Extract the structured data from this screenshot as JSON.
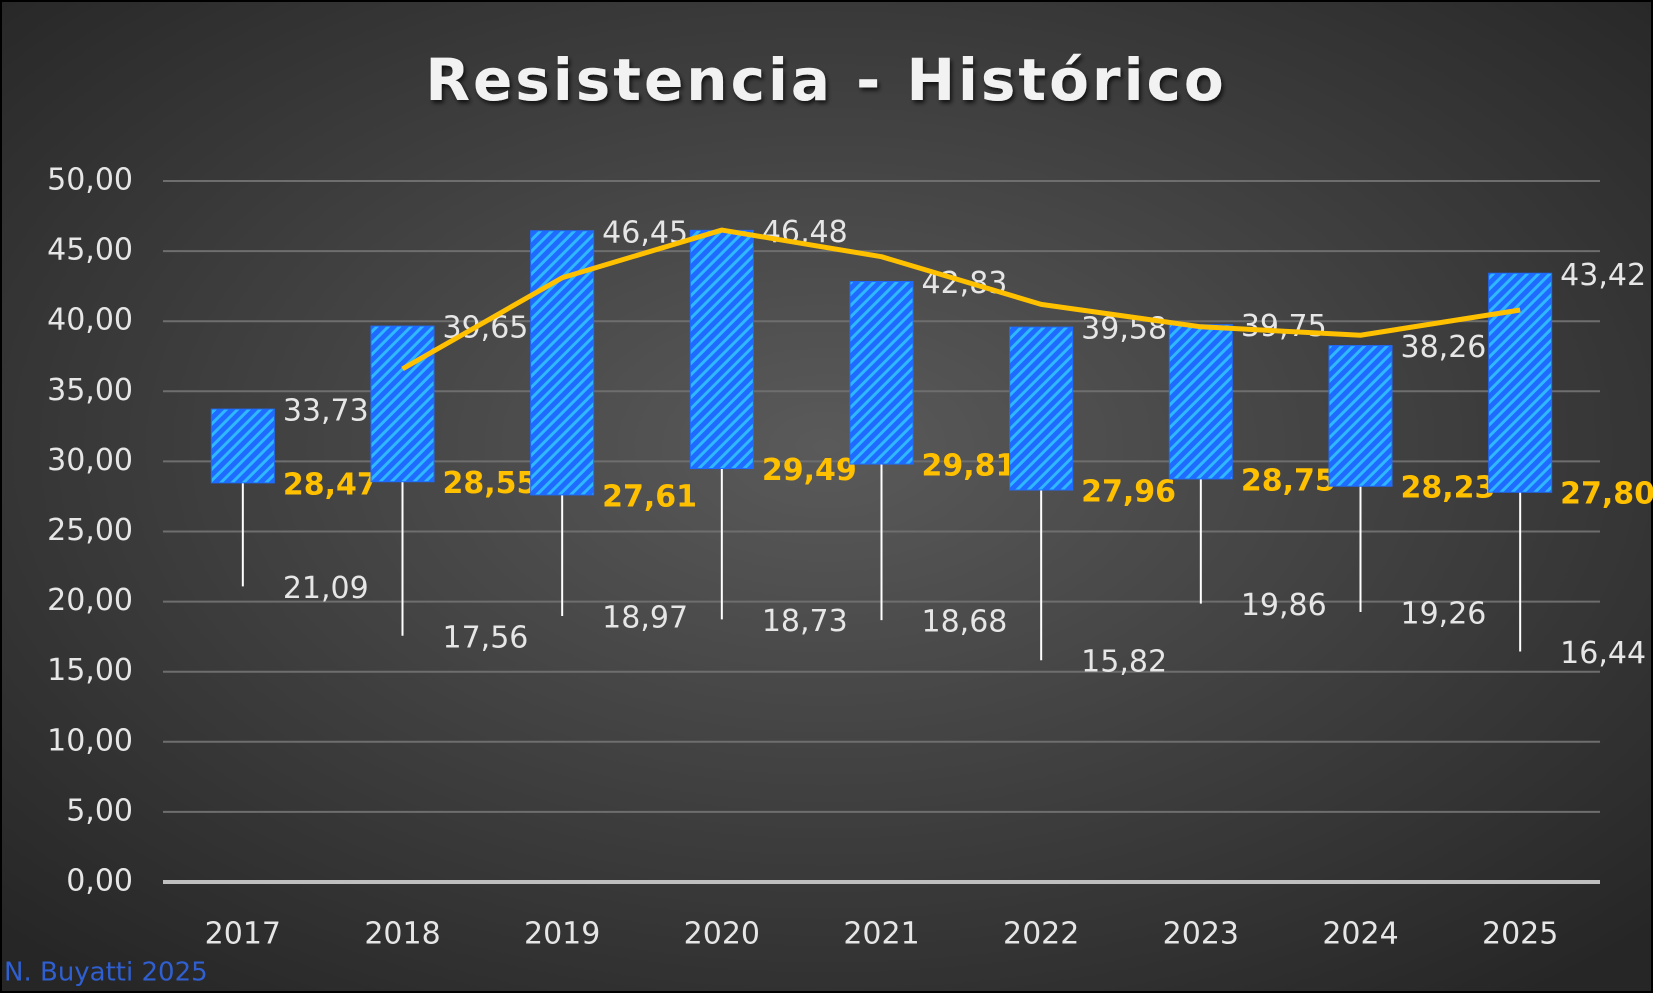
{
  "chart_data": {
    "type": "box-range",
    "title": "Resistencia - Histórico",
    "footer": "N. Buyatti 2025",
    "categories": [
      "2017",
      "2018",
      "2019",
      "2020",
      "2021",
      "2022",
      "2023",
      "2024",
      "2025"
    ],
    "boxes": {
      "color": "#1f6bff",
      "top": [
        33.73,
        39.65,
        46.45,
        46.48,
        42.83,
        39.58,
        39.75,
        38.26,
        43.42
      ],
      "top_labels": [
        "33,73",
        "39,65",
        "46,45",
        "46,48",
        "42,83",
        "39,58",
        "39,75",
        "38,26",
        "43,42"
      ],
      "bottom": [
        28.47,
        28.55,
        27.61,
        29.49,
        29.81,
        27.96,
        28.75,
        28.23,
        27.8
      ],
      "bottom_labels": [
        "28,47",
        "28,55",
        "27,61",
        "29,49",
        "29,81",
        "27,96",
        "28,75",
        "28,23",
        "27,80"
      ],
      "bottom_color": "#ffc000",
      "min": [
        21.09,
        17.56,
        18.97,
        18.73,
        18.68,
        15.82,
        19.86,
        19.26,
        16.44
      ],
      "min_labels": [
        "21,09",
        "17,56",
        "18,97",
        "18,73",
        "18,68",
        "15,82",
        "19,86",
        "19,26",
        "16,44"
      ]
    },
    "line": {
      "color": "#ffc000",
      "values": [
        null,
        36.6,
        43.1,
        46.5,
        44.6,
        41.2,
        39.6,
        39.0,
        40.8
      ]
    },
    "ylim": [
      0,
      50
    ],
    "yticks": [
      {
        "value": 0,
        "label": "0,00"
      },
      {
        "value": 5,
        "label": "5,00"
      },
      {
        "value": 10,
        "label": "10,00"
      },
      {
        "value": 15,
        "label": "15,00"
      },
      {
        "value": 20,
        "label": "20,00"
      },
      {
        "value": 25,
        "label": "25,00"
      },
      {
        "value": 30,
        "label": "30,00"
      },
      {
        "value": 35,
        "label": "35,00"
      },
      {
        "value": 40,
        "label": "40,00"
      },
      {
        "value": 45,
        "label": "45,00"
      },
      {
        "value": 50,
        "label": "50,00"
      }
    ],
    "grid": true
  }
}
